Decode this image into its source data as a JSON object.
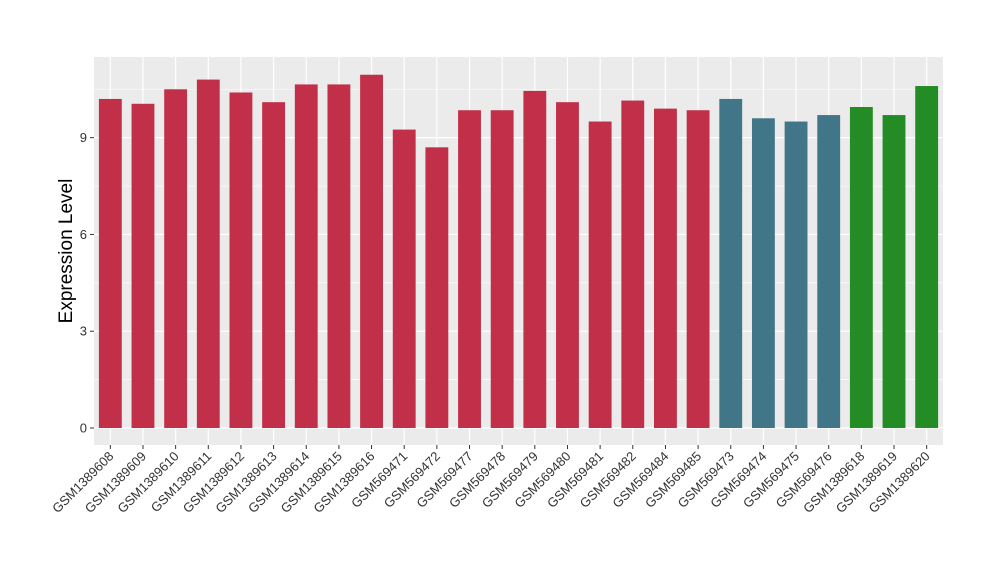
{
  "chart_data": {
    "type": "bar",
    "ylabel": "Expression Level",
    "xlabel": "",
    "ylim": [
      0,
      11.5
    ],
    "yticks": [
      0,
      3,
      6,
      9
    ],
    "grid": true,
    "legend": "none",
    "categories": [
      "GSM1389608",
      "GSM1389609",
      "GSM1389610",
      "GSM1389611",
      "GSM1389612",
      "GSM1389613",
      "GSM1389614",
      "GSM1389615",
      "GSM1389616",
      "GSM569471",
      "GSM569472",
      "GSM569477",
      "GSM569478",
      "GSM569479",
      "GSM569480",
      "GSM569481",
      "GSM569482",
      "GSM569484",
      "GSM569485",
      "GSM569473",
      "GSM569474",
      "GSM569475",
      "GSM569476",
      "GSM1389618",
      "GSM1389619",
      "GSM1389620"
    ],
    "values": [
      10.2,
      10.05,
      10.5,
      10.8,
      10.4,
      10.1,
      10.65,
      10.65,
      10.95,
      9.25,
      8.7,
      9.85,
      9.85,
      10.45,
      10.1,
      9.5,
      10.15,
      9.9,
      9.85,
      10.2,
      9.6,
      9.5,
      9.7,
      9.95,
      9.7,
      10.6
    ],
    "colors": [
      "#c12f48",
      "#c12f48",
      "#c12f48",
      "#c12f48",
      "#c12f48",
      "#c12f48",
      "#c12f48",
      "#c12f48",
      "#c12f48",
      "#c12f48",
      "#c12f48",
      "#c12f48",
      "#c12f48",
      "#c12f48",
      "#c12f48",
      "#c12f48",
      "#c12f48",
      "#c12f48",
      "#c12f48",
      "#417689",
      "#417689",
      "#417689",
      "#417689",
      "#248c24",
      "#248c24",
      "#248c24"
    ],
    "panel_background": "#ebebeb",
    "gridline_color": "#ffffff"
  }
}
